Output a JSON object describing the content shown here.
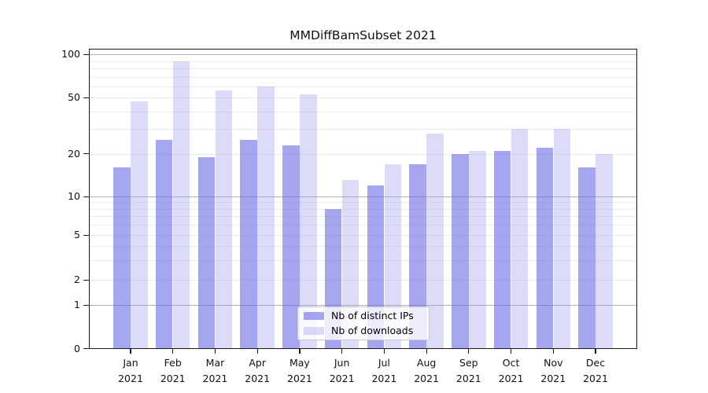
{
  "figure": {
    "background": "#ffffff"
  },
  "chart_data": {
    "type": "bar",
    "title": "MMDiffBamSubset 2021",
    "categories": [
      "Jan 2021",
      "Feb 2021",
      "Mar 2021",
      "Apr 2021",
      "May 2021",
      "Jun 2021",
      "Jul 2021",
      "Aug 2021",
      "Sep 2021",
      "Oct 2021",
      "Nov 2021",
      "Dec 2021"
    ],
    "series": [
      {
        "name": "Nb of distinct IPs",
        "color": "#6e6ee6",
        "alpha": 0.62,
        "values": [
          16,
          25,
          19,
          25,
          23,
          8,
          12,
          17,
          20,
          21,
          22,
          16
        ]
      },
      {
        "name": "Nb of downloads",
        "color": "#9b9beb",
        "alpha": 0.35,
        "values": [
          47,
          90,
          56,
          60,
          53,
          13,
          17,
          28,
          21,
          30,
          30,
          20
        ]
      }
    ],
    "y_axis": {
      "scale": "log-like (log above 1, compressed linear segment down to 0)",
      "ticks": [
        {
          "value": 100,
          "label": "100"
        },
        {
          "value": 50,
          "label": "50"
        },
        {
          "value": 20,
          "label": "20"
        },
        {
          "value": 10,
          "label": "10"
        },
        {
          "value": 5,
          "label": "5"
        },
        {
          "value": 2,
          "label": "2"
        },
        {
          "value": 1,
          "label": "1"
        },
        {
          "value": 0,
          "label": "0"
        }
      ],
      "major_gridlines": [
        1,
        10,
        100
      ],
      "minor_gridlines": [
        2,
        3,
        4,
        5,
        6,
        7,
        8,
        9,
        20,
        30,
        40,
        50,
        60,
        70,
        80,
        90
      ],
      "ylim": [
        0,
        110
      ]
    },
    "x_axis": {
      "label_format": "Month over Year, two lines"
    },
    "legend": {
      "position": "lower center"
    },
    "grid": true
  },
  "colors": {
    "major_grid": "#b0b0b0",
    "minor_grid": "#ececec",
    "spine": "#1a1a1a",
    "text": "#111111",
    "legend_border": "#c9c9c9",
    "legend_bg": "#ffffff"
  }
}
